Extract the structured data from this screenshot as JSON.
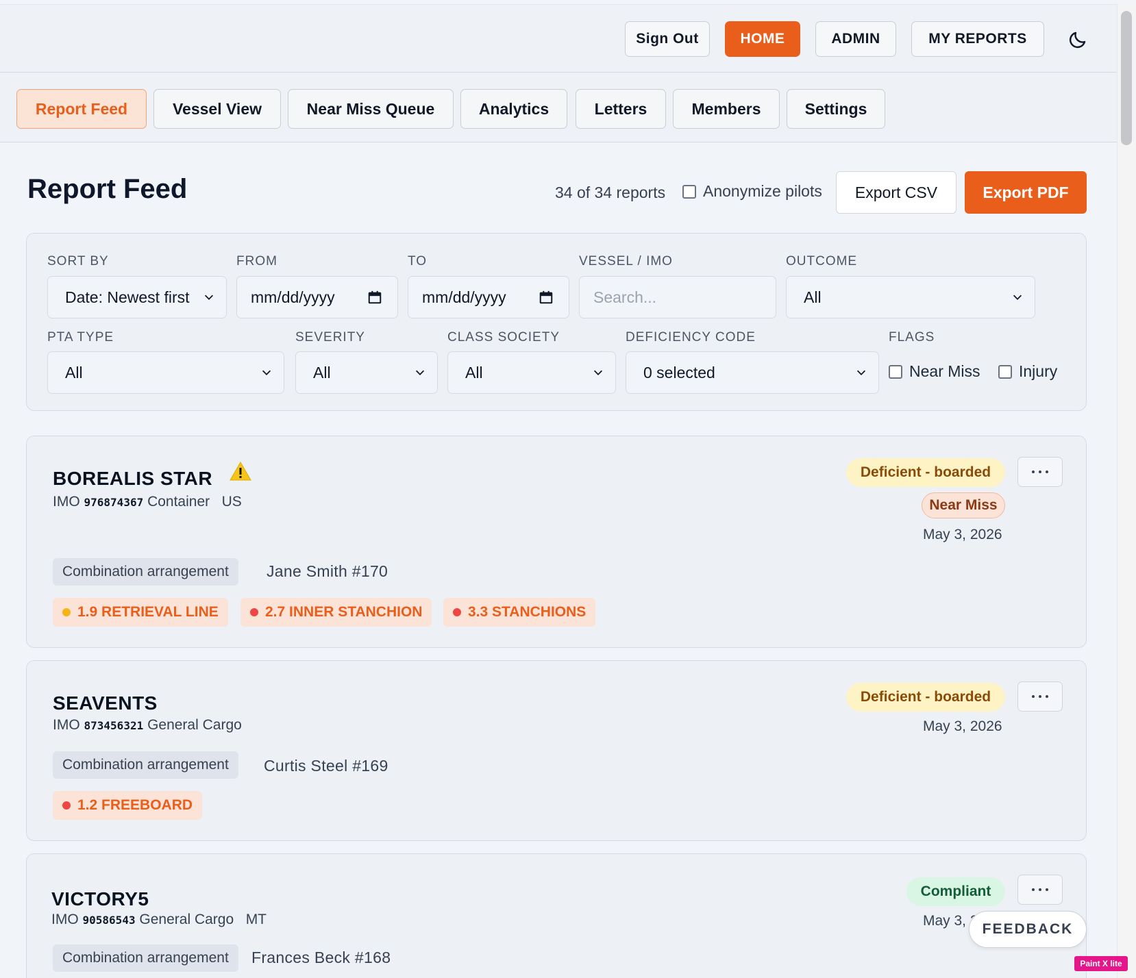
{
  "topnav": {
    "sign_out": "Sign Out",
    "home": "HOME",
    "admin": "ADMIN",
    "my_reports": "MY REPORTS"
  },
  "tabs": [
    {
      "label": "Report Feed",
      "active": true
    },
    {
      "label": "Vessel View"
    },
    {
      "label": "Near Miss Queue"
    },
    {
      "label": "Analytics"
    },
    {
      "label": "Letters"
    },
    {
      "label": "Members"
    },
    {
      "label": "Settings"
    }
  ],
  "header": {
    "title": "Report Feed",
    "count": "34 of 34 reports",
    "anonymize_label": "Anonymize pilots",
    "export_csv": "Export CSV",
    "export_pdf": "Export PDF"
  },
  "filters": {
    "sort_by": {
      "label": "SORT BY",
      "value": "Date: Newest first"
    },
    "from": {
      "label": "FROM",
      "value": "mm/dd/yyyy"
    },
    "to": {
      "label": "TO",
      "value": "mm/dd/yyyy"
    },
    "vessel": {
      "label": "VESSEL / IMO",
      "placeholder": "Search..."
    },
    "outcome": {
      "label": "OUTCOME",
      "value": "All"
    },
    "pta_type": {
      "label": "PTA TYPE",
      "value": "All"
    },
    "severity": {
      "label": "SEVERITY",
      "value": "All"
    },
    "class_society": {
      "label": "CLASS SOCIETY",
      "value": "All"
    },
    "deficiency_code": {
      "label": "DEFICIENCY CODE",
      "value": "0 selected"
    },
    "flags": {
      "label": "FLAGS",
      "near_miss": "Near Miss",
      "injury": "Injury"
    }
  },
  "reports": [
    {
      "name": "BOREALIS STAR",
      "imo_label": "IMO",
      "imo": "976874367",
      "type": "Container",
      "flag": "US",
      "status": "Deficient - boarded",
      "near_miss": "Near Miss",
      "date": "May 3, 2026",
      "arrangement": "Combination arrangement",
      "pilot": "Jane Smith",
      "pilot_no": "#170",
      "deficiencies": [
        {
          "label": "1.9 RETRIEVAL LINE",
          "color": "#f5b316"
        },
        {
          "label": "2.7 INNER STANCHION",
          "color": "#ef4444"
        },
        {
          "label": "3.3 STANCHIONS",
          "color": "#ef4444"
        }
      ]
    },
    {
      "name": "SEAVENTS",
      "imo_label": "IMO",
      "imo": "873456321",
      "type": "General Cargo",
      "status": "Deficient - boarded",
      "date": "May 3, 2026",
      "arrangement": "Combination arrangement",
      "pilot": "Curtis Steel",
      "pilot_no": "#169",
      "deficiencies": [
        {
          "label": "1.2 FREEBOARD",
          "color": "#ef4444"
        }
      ]
    },
    {
      "name": "VICTORY5",
      "imo_label": "IMO",
      "imo": "90586543",
      "type": "General Cargo",
      "flag": "MT",
      "status": "Compliant",
      "date": "May 3, 2026",
      "arrangement": "Combination arrangement",
      "pilot": "Frances Beck",
      "pilot_no": "#168"
    }
  ],
  "feedback": "FEEDBACK",
  "watermark": "Paint X lite",
  "colors": {
    "accent": "#ea5e1b"
  }
}
